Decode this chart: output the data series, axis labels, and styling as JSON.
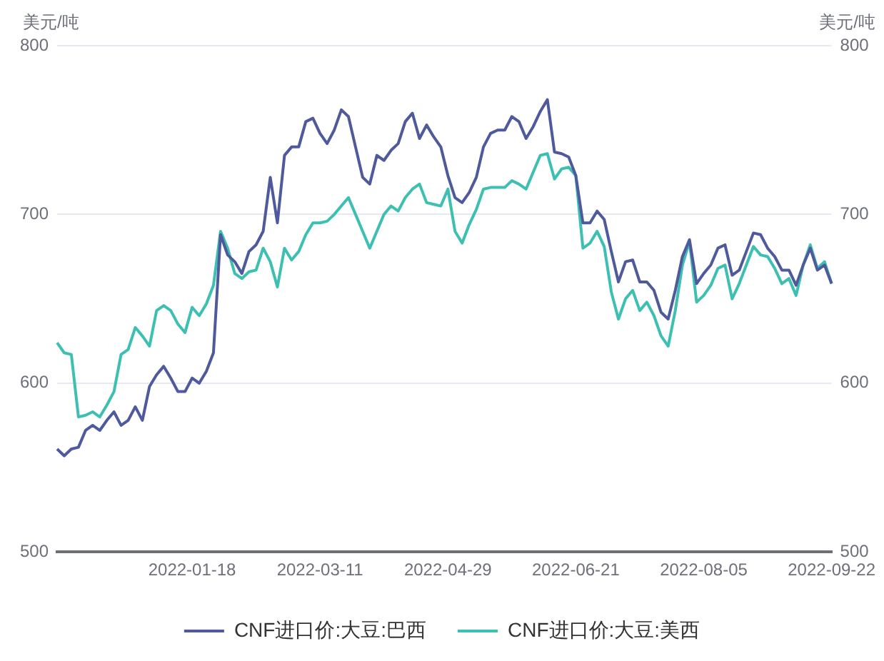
{
  "chart_data": {
    "type": "line",
    "ylabel": "美元/吨",
    "y2label": "美元/吨",
    "categories": [
      null,
      null,
      null,
      null,
      null,
      null,
      null,
      null,
      null,
      null,
      null,
      null,
      null,
      null,
      null,
      null,
      null,
      null,
      null,
      "2022-01-18",
      null,
      null,
      null,
      null,
      null,
      null,
      null,
      null,
      null,
      null,
      null,
      null,
      null,
      null,
      null,
      null,
      null,
      "2022-03-11",
      null,
      null,
      null,
      null,
      null,
      null,
      null,
      null,
      null,
      null,
      null,
      null,
      null,
      null,
      null,
      null,
      null,
      "2022-04-29",
      null,
      null,
      null,
      null,
      null,
      null,
      null,
      null,
      null,
      null,
      null,
      null,
      null,
      null,
      null,
      null,
      null,
      "2022-06-21",
      null,
      null,
      null,
      null,
      null,
      null,
      null,
      null,
      null,
      null,
      null,
      null,
      null,
      null,
      null,
      null,
      null,
      "2022-08-05",
      null,
      null,
      null,
      null,
      null,
      null,
      null,
      null,
      null,
      null,
      null,
      null,
      null,
      null,
      null,
      null,
      null,
      "2022-09-22"
    ],
    "series": [
      {
        "name": "CNF进口价:大豆:巴西",
        "color": "#4e5a9c",
        "values": [
          561,
          557,
          561,
          562,
          572,
          575,
          572,
          578,
          583,
          575,
          578,
          586,
          578,
          598,
          605,
          610,
          603,
          595,
          595,
          603,
          600,
          607,
          618,
          688,
          676,
          672,
          665,
          678,
          682,
          690,
          722,
          695,
          735,
          740,
          740,
          755,
          757,
          748,
          742,
          750,
          762,
          758,
          740,
          722,
          718,
          735,
          732,
          738,
          742,
          755,
          760,
          745,
          753,
          746,
          740,
          723,
          710,
          707,
          713,
          722,
          740,
          748,
          750,
          750,
          758,
          755,
          745,
          752,
          761,
          768,
          737,
          736,
          734,
          723,
          695,
          695,
          702,
          697,
          678,
          660,
          672,
          673,
          660,
          660,
          655,
          642,
          638,
          655,
          675,
          685,
          659,
          665,
          670,
          680,
          682,
          664,
          667,
          678,
          689,
          688,
          680,
          675,
          667,
          667,
          658,
          670,
          680,
          667,
          670,
          659
        ]
      },
      {
        "name": "CNF进口价:大豆:美西",
        "color": "#3dbfb1",
        "values": [
          624,
          618,
          617,
          580,
          581,
          583,
          580,
          587,
          595,
          617,
          620,
          633,
          628,
          622,
          643,
          646,
          643,
          635,
          630,
          645,
          640,
          647,
          658,
          690,
          680,
          665,
          662,
          666,
          667,
          680,
          672,
          657,
          680,
          673,
          678,
          688,
          695,
          695,
          696,
          700,
          705,
          710,
          700,
          690,
          680,
          690,
          700,
          705,
          702,
          710,
          715,
          718,
          707,
          706,
          705,
          715,
          690,
          683,
          694,
          703,
          715,
          716,
          716,
          716,
          720,
          718,
          715,
          725,
          735,
          736,
          721,
          727,
          728,
          723,
          680,
          683,
          690,
          681,
          654,
          638,
          650,
          655,
          643,
          648,
          640,
          628,
          622,
          643,
          670,
          684,
          648,
          652,
          658,
          668,
          670,
          650,
          659,
          670,
          681,
          676,
          675,
          668,
          659,
          662,
          652,
          670,
          682,
          668,
          672,
          659
        ]
      }
    ],
    "ylim": [
      500,
      800
    ],
    "yticks": [
      500,
      600,
      700,
      800
    ],
    "y2lim": [
      500,
      800
    ],
    "y2ticks": [
      500,
      600,
      700,
      800
    ],
    "grid": "y",
    "legend": "bottom",
    "marker": "none",
    "line_style": "solid"
  }
}
